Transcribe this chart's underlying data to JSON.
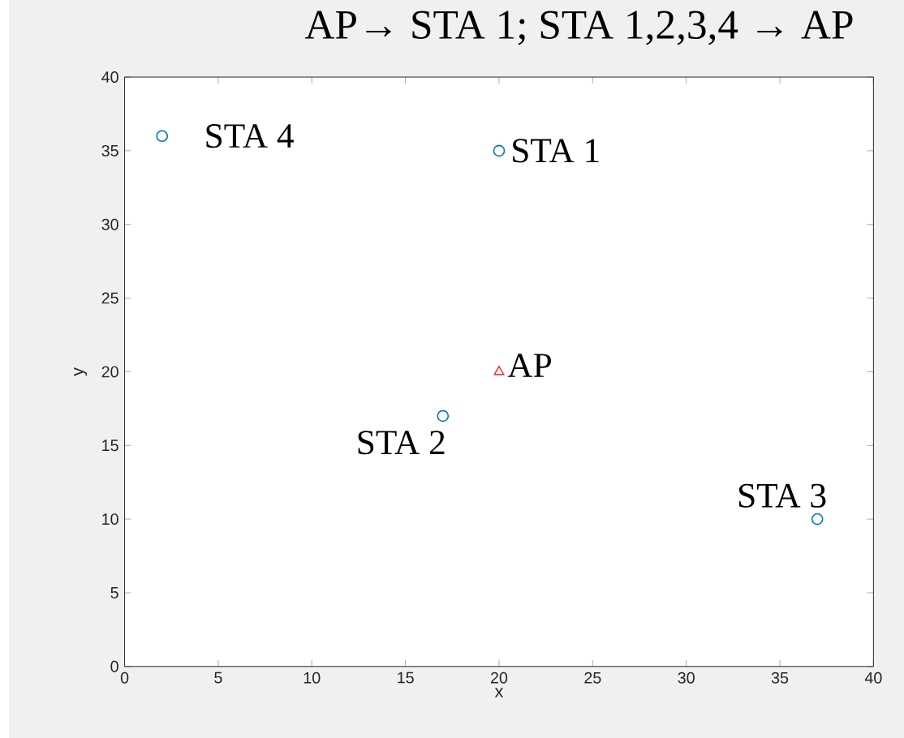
{
  "chart_data": {
    "type": "scatter",
    "title": "AP→ STA 1; STA 1,2,3,4 → AP",
    "xlabel": "x",
    "ylabel": "y",
    "series": [
      {
        "color": "#0072bd",
        "marker": "circle",
        "x": [
          20,
          17,
          37,
          2
        ],
        "values": [
          35,
          17,
          10,
          36
        ]
      },
      {
        "color": "#e8383d",
        "marker": "triangle",
        "x": [
          20
        ],
        "values": [
          20
        ]
      }
    ],
    "xlim": [
      0,
      40
    ],
    "ylim": [
      0,
      40
    ],
    "xticks": [
      0,
      5,
      10,
      15,
      20,
      25,
      30,
      35,
      40
    ],
    "yticks": [
      0,
      5,
      10,
      15,
      20,
      25,
      30,
      35,
      40
    ],
    "grid": false,
    "annotations": [
      {
        "text": "STA 1",
        "x": 20,
        "y": 35
      },
      {
        "text": "STA 2",
        "x": 17,
        "y": 17
      },
      {
        "text": "STA 3",
        "x": 37,
        "y": 10
      },
      {
        "text": "STA 4",
        "x": 2,
        "y": 36
      },
      {
        "text": "AP",
        "x": 20,
        "y": 20
      }
    ]
  }
}
